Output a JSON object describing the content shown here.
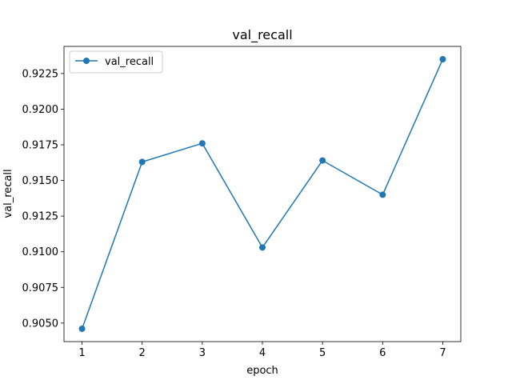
{
  "chart_data": {
    "type": "line",
    "title": "val_recall",
    "xlabel": "epoch",
    "ylabel": "val_recall",
    "x": [
      1,
      2,
      3,
      4,
      5,
      6,
      7
    ],
    "series": [
      {
        "name": "val_recall",
        "values": [
          0.9046,
          0.9163,
          0.9176,
          0.9103,
          0.9164,
          0.914,
          0.9235
        ],
        "color": "#1f77b4",
        "marker": "circle"
      }
    ],
    "xlim": [
      0.7,
      7.3
    ],
    "ylim": [
      0.9037,
      0.9244
    ],
    "xticks": [
      "1",
      "2",
      "3",
      "4",
      "5",
      "6",
      "7"
    ],
    "yticks": [
      "0.9050",
      "0.9075",
      "0.9100",
      "0.9125",
      "0.9150",
      "0.9175",
      "0.9200",
      "0.9225"
    ],
    "legend_position": "upper-left",
    "grid": false
  }
}
